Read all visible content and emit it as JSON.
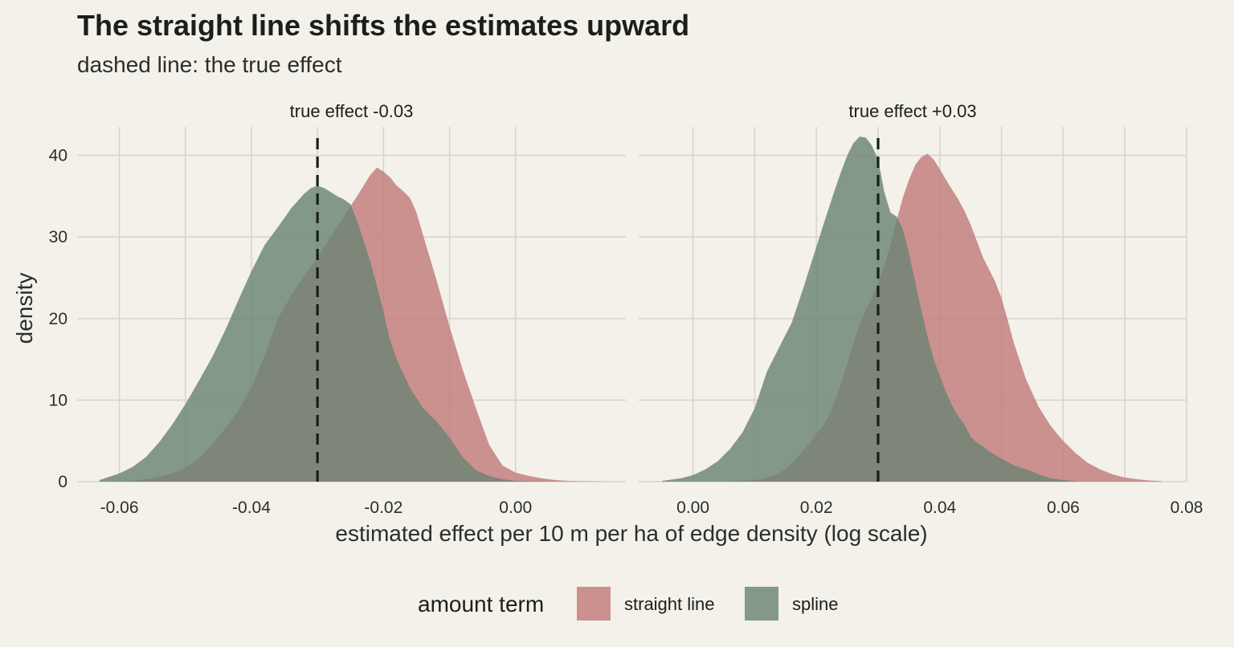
{
  "title": "The straight line shifts the estimates upward",
  "subtitle": "dashed line: the true effect",
  "colors": {
    "straight_line": "#c17b7b",
    "spline": "#6b8473",
    "true_line": "#1a1f1b",
    "background": "#f3f1ea",
    "grid": "#d8d6c7"
  },
  "chart_data": {
    "type": "area",
    "subtype": "density",
    "xlabel": "estimated effect per 10 m per ha of edge density (log scale)",
    "ylabel": "density",
    "ylim": [
      0,
      43.5
    ],
    "yticks": [
      0,
      10,
      20,
      30,
      40
    ],
    "grid": true,
    "legend": {
      "title": "amount term",
      "placement": "bottom",
      "entries": [
        "straight line",
        "spline"
      ]
    },
    "panels": [
      {
        "strip_label": "true effect -0.03",
        "true_effect": -0.03,
        "xlim": [
          -0.0664,
          0.0167
        ],
        "xticks": [
          -0.06,
          -0.04,
          -0.02,
          0.0
        ],
        "xtick_labels": [
          "-0.06",
          "-0.04",
          "-0.02",
          "0.00"
        ],
        "series": [
          {
            "name": "straight line",
            "x": [
              -0.062,
              -0.058,
              -0.055,
              -0.052,
              -0.05,
              -0.048,
              -0.046,
              -0.044,
              -0.042,
              -0.04,
              -0.038,
              -0.036,
              -0.034,
              -0.032,
              -0.03,
              -0.028,
              -0.026,
              -0.025,
              -0.024,
              -0.023,
              -0.022,
              -0.021,
              -0.02,
              -0.019,
              -0.018,
              -0.017,
              -0.016,
              -0.015,
              -0.014,
              -0.013,
              -0.012,
              -0.01,
              -0.008,
              -0.006,
              -0.004,
              -0.002,
              0.0,
              0.002,
              0.004,
              0.006,
              0.008,
              0.01,
              0.012,
              0.014,
              0.016
            ],
            "values": [
              0.0,
              0.1,
              0.4,
              1.0,
              1.7,
              2.8,
              4.5,
              6.5,
              8.7,
              11.5,
              15.5,
              20.0,
              22.8,
              25.2,
              27.5,
              30.0,
              32.5,
              33.8,
              35.0,
              36.3,
              37.6,
              38.5,
              38.0,
              37.3,
              36.3,
              35.6,
              34.8,
              33.0,
              30.2,
              27.5,
              24.8,
              19.0,
              13.7,
              9.0,
              4.5,
              2.0,
              1.1,
              0.7,
              0.4,
              0.2,
              0.1,
              0.05,
              0.03,
              0.01,
              0.0
            ]
          },
          {
            "name": "spline",
            "x": [
              -0.063,
              -0.06,
              -0.058,
              -0.056,
              -0.054,
              -0.052,
              -0.05,
              -0.048,
              -0.046,
              -0.044,
              -0.042,
              -0.04,
              -0.038,
              -0.036,
              -0.034,
              -0.032,
              -0.031,
              -0.03,
              -0.029,
              -0.028,
              -0.027,
              -0.026,
              -0.025,
              -0.024,
              -0.023,
              -0.022,
              -0.021,
              -0.02,
              -0.019,
              -0.018,
              -0.016,
              -0.014,
              -0.012,
              -0.01,
              -0.008,
              -0.006,
              -0.004,
              -0.002,
              0.0,
              0.002,
              0.004,
              0.006,
              0.008
            ],
            "values": [
              0.2,
              1.0,
              1.8,
              3.0,
              4.8,
              7.0,
              9.5,
              12.3,
              15.2,
              18.5,
              22.2,
              25.8,
              29.0,
              31.2,
              33.5,
              35.3,
              36.0,
              36.3,
              36.0,
              35.5,
              35.0,
              34.6,
              34.0,
              32.0,
              29.5,
              27.0,
              24.0,
              20.8,
              17.3,
              15.0,
              11.5,
              9.0,
              7.4,
              5.4,
              3.0,
              1.4,
              0.7,
              0.3,
              0.1,
              0.05,
              0.02,
              0.01,
              0.0
            ]
          }
        ]
      },
      {
        "strip_label": "true effect +0.03",
        "true_effect": 0.03,
        "xlim": [
          -0.0088,
          0.08
        ],
        "xticks": [
          0.0,
          0.02,
          0.04,
          0.06,
          0.08
        ],
        "xtick_labels": [
          "0.00",
          "0.02",
          "0.04",
          "0.06",
          "0.08"
        ],
        "series": [
          {
            "name": "straight line",
            "x": [
              0.005,
              0.008,
              0.011,
              0.013,
              0.015,
              0.017,
              0.019,
              0.021,
              0.022,
              0.023,
              0.024,
              0.025,
              0.026,
              0.027,
              0.028,
              0.029,
              0.03,
              0.031,
              0.032,
              0.033,
              0.034,
              0.035,
              0.036,
              0.037,
              0.038,
              0.039,
              0.04,
              0.041,
              0.042,
              0.043,
              0.044,
              0.045,
              0.046,
              0.047,
              0.048,
              0.049,
              0.05,
              0.051,
              0.052,
              0.054,
              0.056,
              0.058,
              0.06,
              0.062,
              0.064,
              0.066,
              0.068,
              0.07,
              0.072,
              0.074,
              0.076
            ],
            "values": [
              0.0,
              0.1,
              0.3,
              0.7,
              1.5,
              3.0,
              4.8,
              6.8,
              8.0,
              9.8,
              12.0,
              14.5,
              17.0,
              19.3,
              21.0,
              22.5,
              24.3,
              26.5,
              29.0,
              32.0,
              34.8,
              37.0,
              38.8,
              39.8,
              40.2,
              39.5,
              38.3,
              37.0,
              35.8,
              34.6,
              33.2,
              31.5,
              29.5,
              27.5,
              26.0,
              24.5,
              22.5,
              19.8,
              17.0,
              12.5,
              9.2,
              6.8,
              5.0,
              3.5,
              2.3,
              1.5,
              0.9,
              0.5,
              0.3,
              0.15,
              0.05
            ]
          },
          {
            "name": "spline",
            "x": [
              -0.005,
              -0.002,
              0.0,
              0.002,
              0.004,
              0.006,
              0.008,
              0.01,
              0.012,
              0.014,
              0.016,
              0.018,
              0.02,
              0.021,
              0.022,
              0.023,
              0.024,
              0.025,
              0.026,
              0.027,
              0.028,
              0.029,
              0.03,
              0.031,
              0.032,
              0.033,
              0.034,
              0.035,
              0.036,
              0.037,
              0.038,
              0.039,
              0.04,
              0.041,
              0.042,
              0.043,
              0.044,
              0.045,
              0.046,
              0.047,
              0.048,
              0.05,
              0.052,
              0.054,
              0.056,
              0.058,
              0.06,
              0.062
            ],
            "values": [
              0.1,
              0.4,
              0.8,
              1.5,
              2.5,
              4.0,
              6.0,
              9.0,
              13.5,
              16.5,
              19.5,
              24.0,
              28.8,
              31.2,
              33.5,
              35.8,
              38.0,
              40.0,
              41.5,
              42.3,
              42.2,
              41.2,
              39.5,
              35.5,
              33.0,
              32.5,
              31.0,
              28.0,
              24.5,
              21.0,
              17.8,
              15.0,
              13.0,
              11.0,
              9.3,
              8.0,
              7.0,
              5.5,
              4.8,
              4.3,
              3.7,
              2.8,
              2.0,
              1.5,
              0.9,
              0.4,
              0.2,
              0.05
            ]
          }
        ]
      }
    ]
  }
}
